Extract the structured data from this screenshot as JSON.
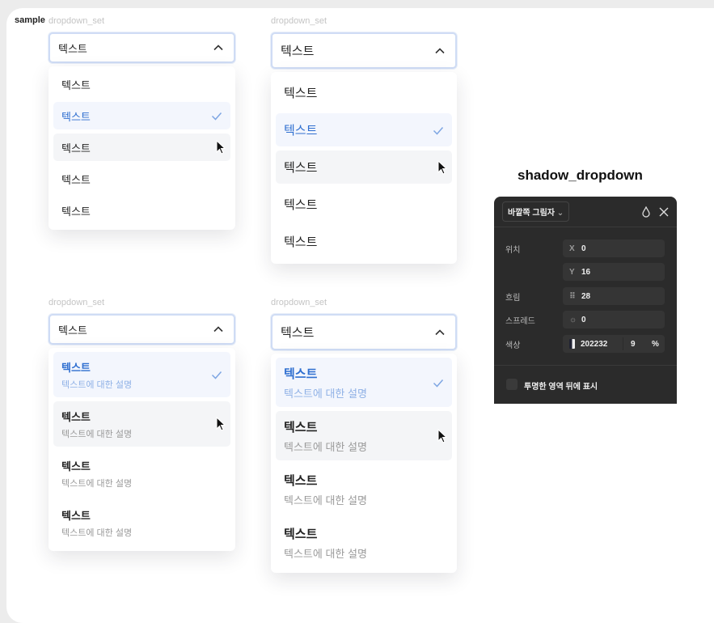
{
  "sample_label": "sample",
  "dropdowns": [
    {
      "label": "dropdown_set",
      "value": "텍스트",
      "size": "small",
      "items": [
        {
          "text": "텍스트"
        },
        {
          "text": "텍스트",
          "selected": true
        },
        {
          "text": "텍스트",
          "hover": true
        },
        {
          "text": "텍스트"
        },
        {
          "text": "텍스트"
        }
      ]
    },
    {
      "label": "dropdown_set",
      "value": "텍스트",
      "size": "large",
      "items": [
        {
          "text": "텍스트"
        },
        {
          "text": "텍스트",
          "selected": true
        },
        {
          "text": "텍스트",
          "hover": true
        },
        {
          "text": "텍스트"
        },
        {
          "text": "텍스트"
        }
      ]
    },
    {
      "label": "dropdown_set",
      "value": "텍스트",
      "size": "small",
      "items": [
        {
          "text": "텍스트",
          "desc": "텍스트에 대한 설명",
          "selected": true
        },
        {
          "text": "텍스트",
          "desc": "텍스트에 대한 설명",
          "hover": true
        },
        {
          "text": "텍스트",
          "desc": "텍스트에 대한 설명"
        },
        {
          "text": "텍스트",
          "desc": "텍스트에 대한 설명"
        }
      ]
    },
    {
      "label": "dropdown_set",
      "value": "텍스트",
      "size": "large",
      "items": [
        {
          "text": "텍스트",
          "desc": "텍스트에 대한 설명",
          "selected": true
        },
        {
          "text": "텍스트",
          "desc": "텍스트에 대한 설명",
          "hover": true
        },
        {
          "text": "텍스트",
          "desc": "텍스트에 대한 설명"
        },
        {
          "text": "텍스트",
          "desc": "텍스트에 대한 설명"
        }
      ]
    }
  ],
  "shadow": {
    "title": "shadow_dropdown",
    "type_select": "바깥쪽 그림자",
    "position_label": "위치",
    "x_key": "X",
    "x": "0",
    "y_key": "Y",
    "y": "16",
    "blur_label": "흐림",
    "blur": "28",
    "spread_label": "스프레드",
    "spread": "0",
    "color_label": "색상",
    "color": "202232",
    "opacity": "9",
    "percent": "%",
    "checkbox_label": "투명한 영역 뒤에 표시",
    "checkbox_checked": false
  },
  "colors": {
    "accent": "#2f6fd0",
    "selected_bg": "#f3f6fd",
    "hover_bg": "#f4f5f7",
    "panel_bg": "#2b2b2b"
  }
}
